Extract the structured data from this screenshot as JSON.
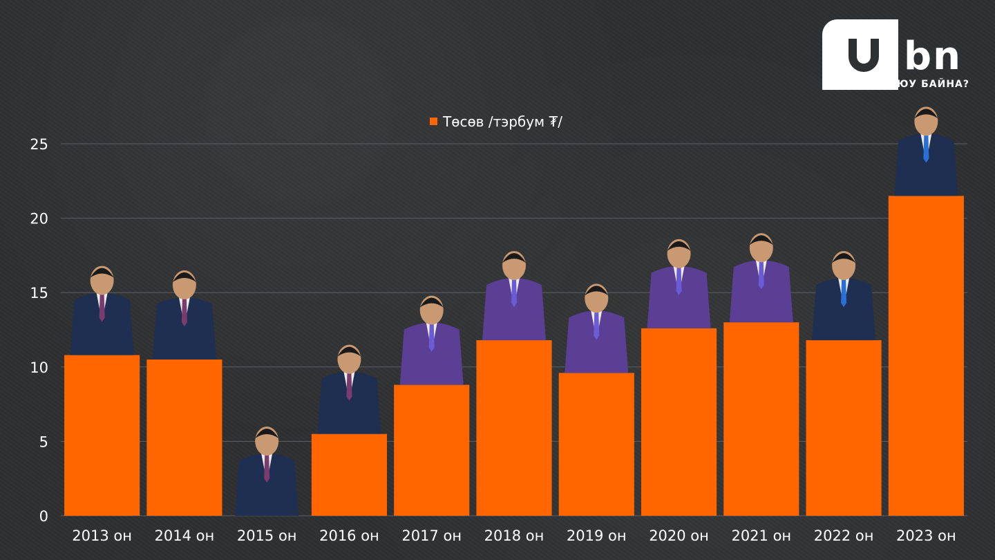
{
  "logo": {
    "mark": "b",
    "mark_accent": "n",
    "tagline": "ЮУ БАЙНА?"
  },
  "colors": {
    "bar": "#ff6600",
    "grid": "#5d6063",
    "text": "#ffffff"
  },
  "chart_data": {
    "type": "bar",
    "title": "",
    "legend": [
      "Төсөв /тэрбум ₮/"
    ],
    "legend_position": "top-center",
    "categories": [
      "2013 он",
      "2014 он",
      "2015 он",
      "2016 он",
      "2017 он",
      "2018 он",
      "2019 он",
      "2020 он",
      "2021 он",
      "2022 он",
      "2023 он"
    ],
    "series": [
      {
        "name": "Төсөв /тэрбум ₮/",
        "values": [
          10.8,
          10.5,
          0,
          5.5,
          8.8,
          11.8,
          9.6,
          12.6,
          13.0,
          11.8,
          21.5
        ]
      }
    ],
    "ylim": [
      0,
      25
    ],
    "yticks": [
      0,
      5,
      10,
      15,
      20,
      25
    ],
    "grid": true,
    "xlabel": "",
    "ylabel": ""
  }
}
